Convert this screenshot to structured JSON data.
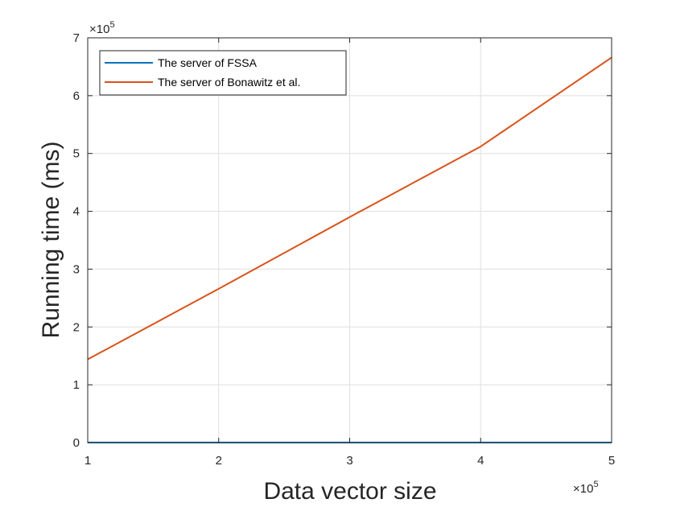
{
  "chart_data": {
    "type": "line",
    "title": "",
    "xlabel": "Data vector size",
    "ylabel": "Running time (ms)",
    "x_multiplier": "×10",
    "x_multiplier_exp": "5",
    "y_multiplier": "×10",
    "y_multiplier_exp": "5",
    "xlim": [
      1,
      5
    ],
    "ylim": [
      0,
      7
    ],
    "x_ticks": [
      "1",
      "2",
      "3",
      "4",
      "5"
    ],
    "y_ticks": [
      "0",
      "1",
      "2",
      "3",
      "4",
      "5",
      "6",
      "7"
    ],
    "grid": true,
    "legend_position": "top-left",
    "series": [
      {
        "name": "The server of FSSA",
        "color": "#0072BD",
        "x": [
          1,
          2,
          3,
          4,
          5
        ],
        "y": [
          0.002,
          0.002,
          0.002,
          0.002,
          0.002
        ]
      },
      {
        "name": "The server of Bonawitz et al.",
        "color": "#D95319",
        "x": [
          1,
          2,
          3,
          4,
          5
        ],
        "y": [
          1.44,
          2.66,
          3.9,
          5.12,
          6.66
        ]
      }
    ]
  }
}
